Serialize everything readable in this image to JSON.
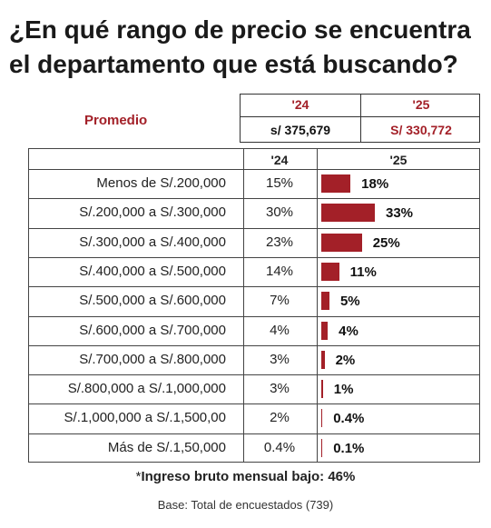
{
  "title": "¿En qué rango de precio se encuentra el departamento que está buscando?",
  "promedio": {
    "label": "Promedio",
    "year_24": "'24",
    "year_25": "'25",
    "value_24": "s/ 375,679",
    "value_25": "S/ 330,772"
  },
  "chart_data": {
    "type": "bar",
    "title": "¿En qué rango de precio se encuentra el departamento que está buscando?",
    "column_headers": [
      "'24",
      "'25"
    ],
    "categories": [
      "Menos de S/.200,000",
      "S/.200,000 a S/.300,000",
      "S/.300,000 a S/.400,000",
      "S/.400,000 a S/.500,000",
      "S/.500,000 a S/.600,000",
      "S/.600,000 a S/.700,000",
      "S/.700,000 a S/.800,000",
      "S/.800,000 a S/.1,000,000",
      "S/.1,000,000 a S/.1,500,00",
      "Más de S/.1,50,000"
    ],
    "labels_24": [
      "15%",
      "30%",
      "23%",
      "14%",
      "7%",
      "4%",
      "3%",
      "3%",
      "2%",
      "0.4%"
    ],
    "labels_25": [
      "18%",
      "33%",
      "25%",
      "11%",
      "5%",
      "4%",
      "2%",
      "1%",
      "0.4%",
      "0.1%"
    ],
    "values_25": [
      18,
      33,
      25,
      11,
      5,
      4,
      2,
      1,
      0.4,
      0.1
    ],
    "bar_color": "#a32028"
  },
  "footnote": {
    "asterisk": "*",
    "text": "Ingreso bruto mensual bajo: 46%"
  },
  "base": "Base: Total de encuestados (739)"
}
